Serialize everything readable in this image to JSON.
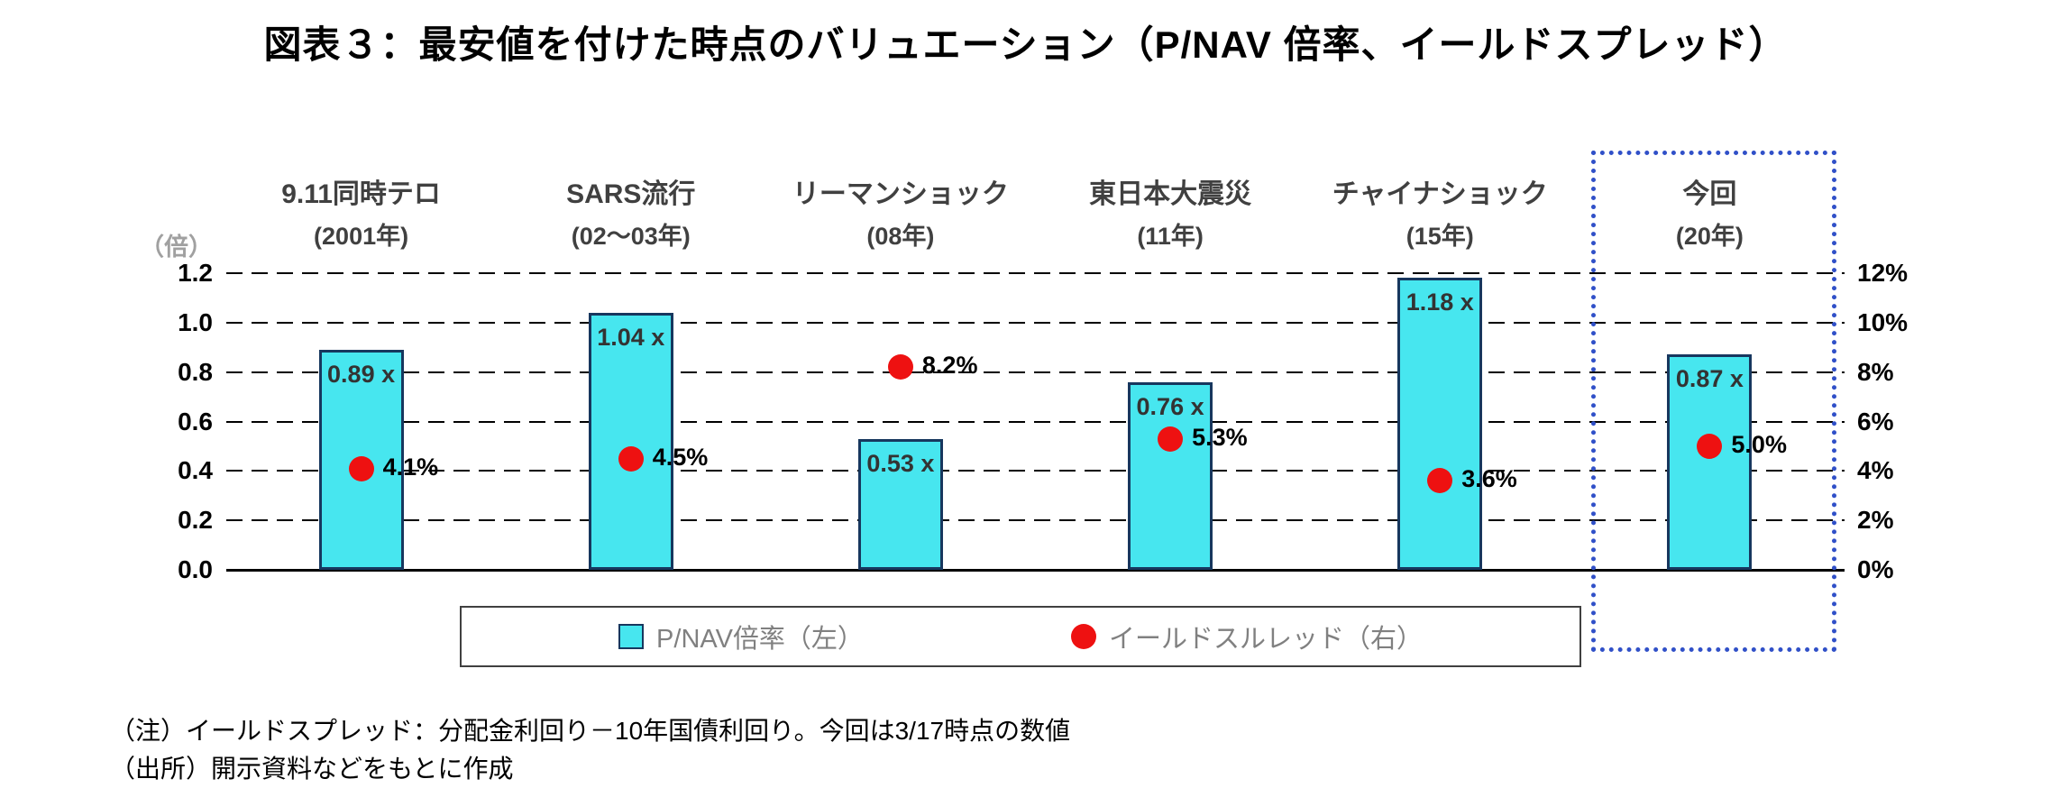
{
  "title": "図表３：最安値を付けた時点のバリュエーション（P/NAV 倍率、イールドスプレッド）",
  "colors": {
    "bar_fill": "#47e6ef",
    "bar_border": "#17375e",
    "dot": "#ee1111",
    "highlight_box": "#3050c8",
    "category_label": "#404040",
    "legend_text": "#808080",
    "axis_unit": "#a0a0a0"
  },
  "notes": [
    "（注）イールドスプレッド：分配金利回り－10年国債利回り。今回は3/17時点の数値",
    "（出所）開示資料などをもとに作成"
  ],
  "chart_data": {
    "type": "bar",
    "title": "図表３：最安値を付けた時点のバリュエーション（P/NAV 倍率、イールドスプレッド）",
    "categories": [
      "9.11同時テロ",
      "SARS流行",
      "リーマンショック",
      "東日本大震災",
      "チャイナショック",
      "今回"
    ],
    "category_sublabels": [
      "(2001年)",
      "(02～03年)",
      "(08年)",
      "(11年)",
      "(15年)",
      "(20年)"
    ],
    "series": [
      {
        "name": "P/NAV倍率（左）",
        "type": "bar",
        "axis": "left",
        "values": [
          0.89,
          1.04,
          0.53,
          0.76,
          1.18,
          0.87
        ],
        "labels": [
          "0.89 x",
          "1.04 x",
          "0.53 x",
          "0.76 x",
          "1.18 x",
          "0.87 x"
        ]
      },
      {
        "name": "イールドスルレッド（右）",
        "type": "scatter",
        "axis": "right",
        "values": [
          4.1,
          4.5,
          8.2,
          5.3,
          3.6,
          5.0
        ],
        "labels": [
          "4.1%",
          "4.5%",
          "8.2%",
          "5.3%",
          "3.6%",
          "5.0%"
        ]
      }
    ],
    "left_axis": {
      "unit": "（倍）",
      "min": 0.0,
      "max": 1.2,
      "step": 0.2,
      "ticks": [
        "0.0",
        "0.2",
        "0.4",
        "0.6",
        "0.8",
        "1.0",
        "1.2"
      ]
    },
    "right_axis": {
      "min": 0,
      "max": 12,
      "step": 2,
      "ticks": [
        "0%",
        "2%",
        "4%",
        "6%",
        "8%",
        "10%",
        "12%"
      ]
    },
    "grid": "dashed-horizontal",
    "legend_position": "bottom",
    "highlight": {
      "category_index": 5,
      "style": "blue-dotted-box"
    }
  }
}
